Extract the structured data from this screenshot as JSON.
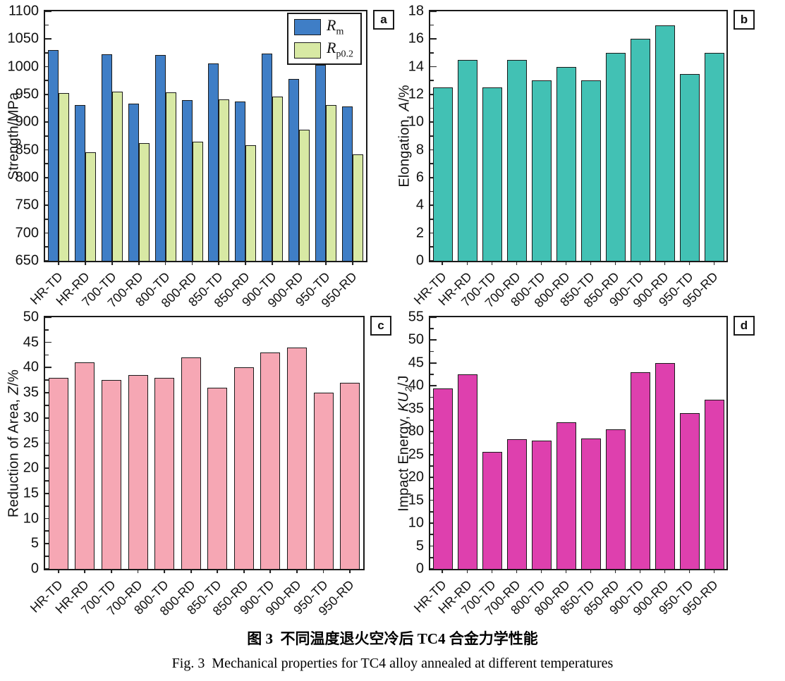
{
  "figure": {
    "caption_zh": "图 3  不同温度退火空冷后 TC4 合金力学性能",
    "caption_en": "Fig. 3  Mechanical properties for TC4 alloy annealed at different temperatures"
  },
  "categories": [
    "HR-TD",
    "HR-RD",
    "700-TD",
    "700-RD",
    "800-TD",
    "800-RD",
    "850-TD",
    "850-RD",
    "900-TD",
    "900-RD",
    "950-TD",
    "950-RD"
  ],
  "chart_data": [
    {
      "type": "bar",
      "panel_label": "a",
      "ylabel": "Strength/MPa",
      "ylabel_segments": [
        {
          "text": "Strength/MPa"
        }
      ],
      "ylim": [
        650,
        1100
      ],
      "ytick_step": 50,
      "yminor_step": 25,
      "grid": false,
      "legend_position": "top-right",
      "series": [
        {
          "name": "Rm",
          "label_base": "R",
          "label_sub": "m",
          "color": "#3f7ec6",
          "values": [
            1030,
            931,
            1023,
            933,
            1021,
            940,
            1006,
            937,
            1024,
            978,
            1003,
            928
          ]
        },
        {
          "name": "Rp0.2",
          "label_base": "R",
          "label_sub": "p0.2",
          "color": "#d8e9a4",
          "values": [
            953,
            846,
            955,
            862,
            954,
            865,
            941,
            858,
            946,
            887,
            931,
            842
          ]
        }
      ]
    },
    {
      "type": "bar",
      "panel_label": "b",
      "ylabel": "Elongation, A/%",
      "ylabel_segments": [
        {
          "text": "Elongation, "
        },
        {
          "text": "A",
          "italic": true
        },
        {
          "text": "/%"
        }
      ],
      "ylim": [
        0,
        18
      ],
      "ytick_step": 2,
      "yminor_step": 1,
      "grid": false,
      "series": [
        {
          "name": "Elongation",
          "color": "#42c1b4",
          "values": [
            12.5,
            14.5,
            12.5,
            14.5,
            13,
            14,
            13,
            15,
            16,
            17,
            13.5,
            15
          ]
        }
      ]
    },
    {
      "type": "bar",
      "panel_label": "c",
      "ylabel": "Reduction of Area, Z/%",
      "ylabel_segments": [
        {
          "text": "Reduction of Area, "
        },
        {
          "text": "Z",
          "italic": true
        },
        {
          "text": "/%"
        }
      ],
      "ylim": [
        0,
        50
      ],
      "ytick_step": 5,
      "yminor_step": 2.5,
      "grid": false,
      "series": [
        {
          "name": "Reduction of Area",
          "color": "#f6a7b4",
          "values": [
            38,
            41,
            37.5,
            38.5,
            38,
            42,
            36,
            40,
            43,
            44,
            35,
            37
          ]
        }
      ]
    },
    {
      "type": "bar",
      "panel_label": "d",
      "ylabel": "Impact Energy, KU2/J",
      "ylabel_segments": [
        {
          "text": "Impact Energy, "
        },
        {
          "text": "KU",
          "italic": true
        },
        {
          "text": "2",
          "sub": true,
          "italic": true
        },
        {
          "text": "/J"
        }
      ],
      "ylim": [
        0,
        55
      ],
      "ytick_step": 5,
      "yminor_step": 2.5,
      "grid": false,
      "series": [
        {
          "name": "Impact Energy",
          "color": "#de40ae",
          "values": [
            39.5,
            42.5,
            25.5,
            28.3,
            28,
            32,
            28.5,
            30.5,
            43,
            45,
            34,
            37
          ]
        }
      ]
    }
  ]
}
